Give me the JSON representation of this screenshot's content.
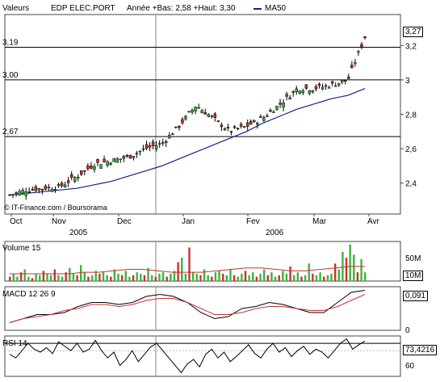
{
  "header": {
    "label": "Valeurs",
    "instrument": "EDP ELEC.PORT",
    "stats": "Année +Bas: 2,58 +Haut: 3,30",
    "ma_label": "MA50",
    "ma_color": "#1c1c8c",
    "credit": "© IT-Finance.com / Boursorama"
  },
  "chart_data": [
    {
      "type": "candlestick",
      "title": "EDP ELEC.PORT",
      "x_labels": [
        "Oct",
        "Nov",
        "Dec",
        "Jan",
        "Fev",
        "Mar",
        "Avr"
      ],
      "year_labels": [
        "2005",
        "2006"
      ],
      "y_ticks": [
        2.4,
        2.6,
        2.8,
        3.0,
        3.2
      ],
      "y_tick_labels": [
        "2,4",
        "2,6",
        "2,8",
        "3",
        "3,2"
      ],
      "ylim": [
        2.22,
        3.38
      ],
      "reference_lines": [
        {
          "value": 3.19,
          "label": "3,19"
        },
        {
          "value": 3.0,
          "label": "3,00"
        },
        {
          "value": 2.67,
          "label": "2,67"
        }
      ],
      "last_value": "3,27",
      "ma": "MA50",
      "ma_values": [
        2.33,
        2.34,
        2.35,
        2.36,
        2.37,
        2.39,
        2.41,
        2.44,
        2.47,
        2.5,
        2.54,
        2.58,
        2.62,
        2.66,
        2.7,
        2.75,
        2.79,
        2.83,
        2.86,
        2.89,
        2.91,
        2.95
      ],
      "close_values": [
        2.33,
        2.36,
        2.37,
        2.38,
        2.44,
        2.51,
        2.53,
        2.55,
        2.6,
        2.63,
        2.73,
        2.85,
        2.78,
        2.7,
        2.73,
        2.78,
        2.86,
        2.95,
        2.95,
        2.97,
        3.0,
        3.25
      ]
    },
    {
      "type": "bar",
      "title": "Volume 15",
      "y_tick_labels": [
        "50M",
        "10M"
      ],
      "last_value": "10M",
      "values": [
        3,
        5,
        3,
        6,
        8,
        3,
        2,
        5,
        4,
        7,
        5,
        4,
        8,
        4,
        3,
        6,
        9,
        5,
        4,
        11,
        6,
        3,
        4,
        7,
        5,
        6,
        4,
        3,
        8,
        5,
        4,
        7,
        3,
        4,
        6,
        5,
        4,
        9,
        4,
        3,
        5,
        6,
        3,
        5,
        7,
        13,
        16,
        5,
        23,
        6,
        5,
        4,
        8,
        4,
        3,
        6,
        7,
        5,
        4,
        8,
        4,
        3,
        5,
        7,
        4,
        6,
        3,
        5,
        8,
        4,
        6,
        3,
        4,
        7,
        5,
        10,
        4,
        6,
        3,
        4,
        12,
        5,
        4,
        6,
        3,
        4,
        5,
        12,
        8,
        20,
        16,
        25,
        18,
        6,
        15,
        6
      ],
      "ma_values": [
        5,
        5,
        5,
        5,
        5,
        6,
        6,
        7,
        8,
        8,
        7,
        6,
        6,
        6,
        7,
        8,
        9,
        9,
        8,
        7,
        7,
        8,
        9,
        10,
        10
      ]
    },
    {
      "type": "line",
      "title": "MACD 12 26 9",
      "y_tick_labels": [
        "0,091",
        "0"
      ],
      "last_value": "0,091",
      "series": [
        {
          "values": [
            0.01,
            0.02,
            0.03,
            0.03,
            0.035,
            0.05,
            0.06,
            0.06,
            0.055,
            0.06,
            0.075,
            0.08,
            0.075,
            0.06,
            0.035,
            0.02,
            0.025,
            0.045,
            0.05,
            0.06,
            0.055,
            0.045,
            0.035,
            0.035,
            0.06,
            0.085,
            0.09
          ]
        },
        {
          "values": [
            0.01,
            0.02,
            0.025,
            0.03,
            0.04,
            0.045,
            0.055,
            0.055,
            0.05,
            0.055,
            0.065,
            0.07,
            0.07,
            0.06,
            0.045,
            0.03,
            0.03,
            0.035,
            0.045,
            0.05,
            0.05,
            0.045,
            0.04,
            0.04,
            0.05,
            0.065,
            0.08
          ]
        }
      ]
    },
    {
      "type": "line",
      "title": "RSI 14",
      "y_tick_labels": [
        "73,4216",
        "60"
      ],
      "last_value": "73,4216",
      "series": [
        {
          "values": [
            55,
            50,
            60,
            70,
            62,
            58,
            64,
            56,
            72,
            66,
            60,
            70,
            58,
            62,
            74,
            60,
            50,
            58,
            40,
            48,
            60,
            45,
            55,
            65,
            70,
            60,
            50,
            40,
            30,
            42,
            48,
            38,
            55,
            62,
            50,
            58,
            45,
            52,
            60,
            68,
            56,
            50,
            62,
            70,
            58,
            64,
            52,
            60,
            66,
            55,
            62,
            58,
            50,
            60,
            70,
            76,
            62,
            68,
            73
          ]
        }
      ]
    }
  ]
}
